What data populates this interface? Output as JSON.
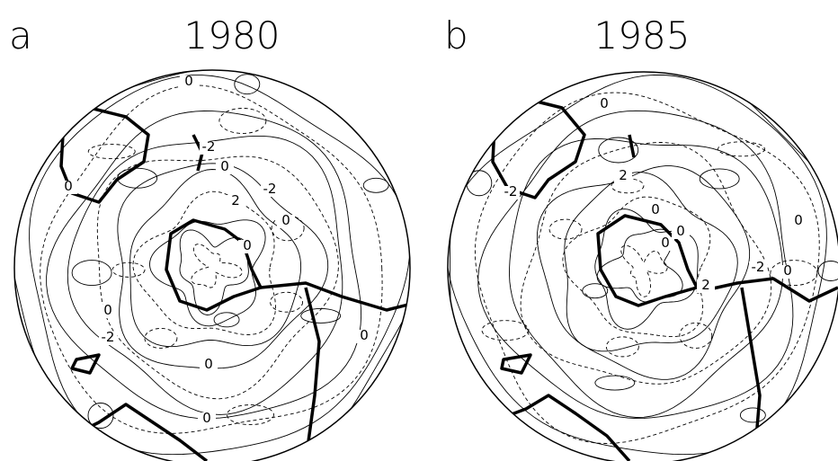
{
  "panels": [
    {
      "letter": "a",
      "title": "1980",
      "contour_labels": [
        "0",
        "-2",
        "0",
        "-2",
        "2",
        "0",
        "0",
        "0",
        "-2",
        "0",
        "0",
        "0",
        "0",
        "0"
      ]
    },
    {
      "letter": "b",
      "title": "1985",
      "contour_labels": [
        "0",
        "-2",
        "2",
        "0",
        "0",
        "0",
        "-2",
        "0",
        "2",
        "0"
      ]
    }
  ]
}
